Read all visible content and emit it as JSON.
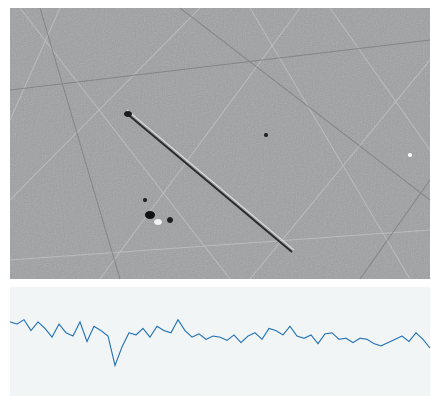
{
  "chart_data": {
    "type": "line",
    "x": [
      0,
      7,
      14,
      21,
      28,
      35,
      42,
      49,
      56,
      63,
      70,
      77,
      84,
      91,
      98,
      105,
      112,
      119,
      126,
      133,
      140,
      147,
      154,
      161,
      168,
      175,
      182,
      189,
      196,
      203,
      210,
      217,
      224,
      231,
      238,
      245,
      252,
      259,
      266,
      273,
      280,
      287,
      294,
      301,
      308,
      315,
      322,
      329,
      336,
      343,
      350,
      357,
      364,
      371,
      378,
      385,
      392,
      399,
      406,
      413,
      420
    ],
    "series": [
      {
        "color": "#1f6fb5",
        "values": [
          68,
          66,
          70,
          60,
          68,
          62,
          54,
          66,
          58,
          55,
          68,
          50,
          64,
          60,
          55,
          28,
          45,
          58,
          56,
          62,
          54,
          64,
          60,
          58,
          70,
          60,
          54,
          57,
          52,
          55,
          54,
          51,
          56,
          49,
          55,
          58,
          52,
          62,
          60,
          56,
          64,
          55,
          53,
          56,
          48,
          57,
          58,
          52,
          53,
          49,
          53,
          52,
          48,
          46,
          49,
          52,
          55,
          50,
          58,
          52,
          44
        ]
      }
    ],
    "xlim": [
      0,
      420
    ],
    "ylim": [
      0,
      100
    ]
  }
}
